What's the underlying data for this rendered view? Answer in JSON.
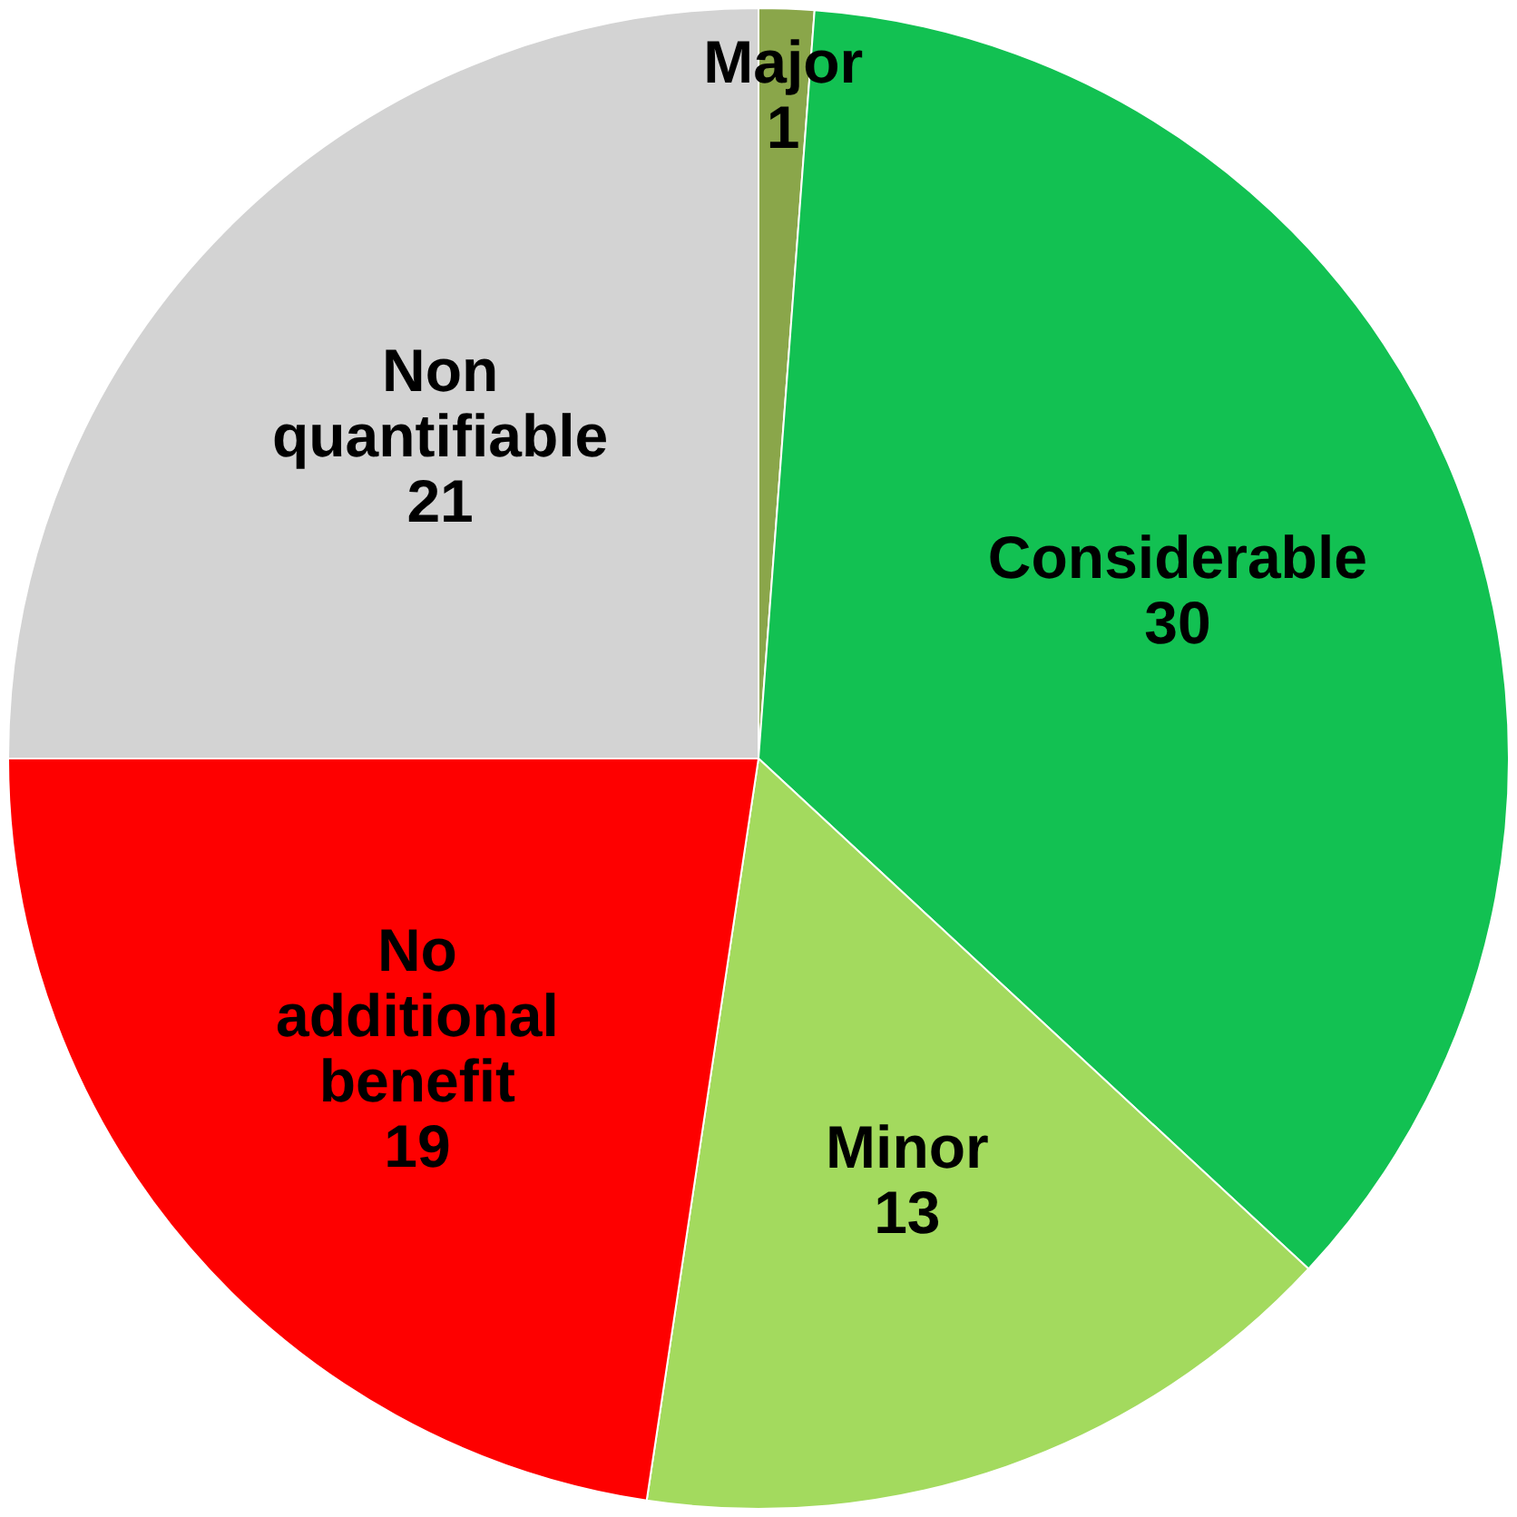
{
  "chart_data": {
    "type": "pie",
    "categories": [
      "Major",
      "Considerable",
      "Minor",
      "No additional benefit",
      "Non quantifiable"
    ],
    "values": [
      1,
      30,
      13,
      19,
      21
    ],
    "colors": [
      "#8aa64a",
      "#12c152",
      "#a3da5e",
      "#fe0000",
      "#d3d3d3"
    ],
    "data_labels": true,
    "legend": false
  }
}
